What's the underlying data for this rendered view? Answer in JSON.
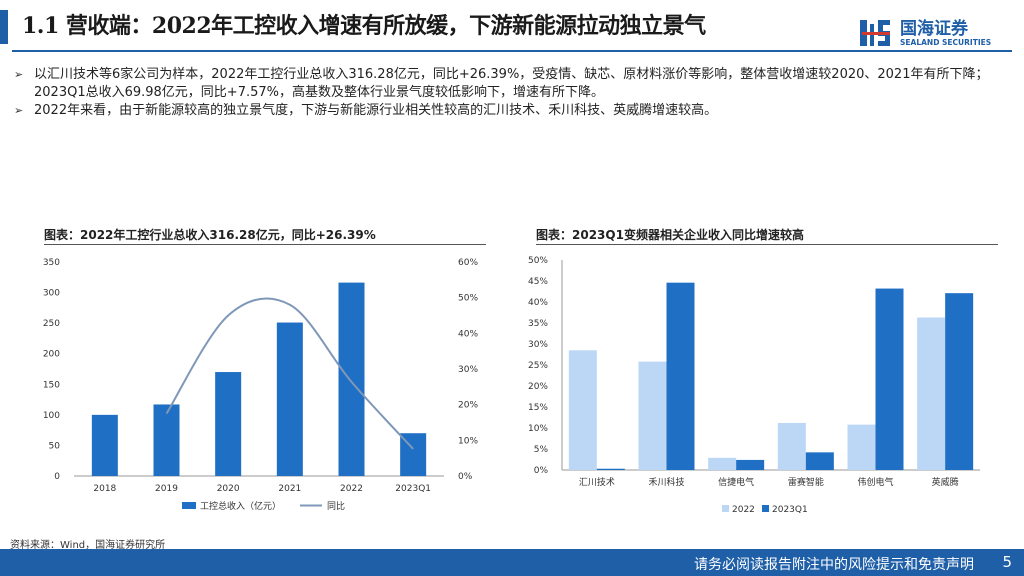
{
  "header": {
    "title": "1.1 营收端：2022年工控收入增速有所放缓，下游新能源拉动独立景气",
    "logo_cn": "国海证券",
    "logo_en": "SEALAND SECURITIES",
    "accent_color": "#1f5fa8"
  },
  "bullets": [
    "以汇川技术等6家公司为样本，2022年工控行业总收入316.28亿元，同比+26.39%，受疫情、缺芯、原材料涨价等影响，整体营收增速较2020、2021年有所下降；2023Q1总收入69.98亿元，同比+7.57%，高基数及整体行业景气度较低影响下，增速有所下降。",
    "2022年来看，由于新能源较高的独立景气度，下游与新能源行业相关性较高的汇川技术、禾川科技、英威腾增速较高。"
  ],
  "chart_data": [
    {
      "type": "bar",
      "title": "图表：2022年工控行业总收入316.28亿元，同比+26.39%",
      "categories": [
        "2018",
        "2019",
        "2020",
        "2021",
        "2022",
        "2023Q1"
      ],
      "series": [
        {
          "name": "工控总收入（亿元）",
          "type": "bar",
          "axis": "left",
          "color": "#1f6fc5",
          "values": [
            100,
            117,
            170,
            251,
            316.28,
            69.98
          ]
        },
        {
          "name": "同比",
          "type": "line",
          "axis": "right",
          "color": "#7f98b8",
          "values": [
            null,
            17.5,
            45,
            48,
            26.39,
            7.57
          ]
        }
      ],
      "ylim": [
        0,
        350
      ],
      "yticks": [
        "0",
        "50",
        "100",
        "150",
        "200",
        "250",
        "300",
        "350"
      ],
      "y2lim": [
        0,
        60
      ],
      "y2ticks": [
        "0%",
        "10%",
        "20%",
        "30%",
        "40%",
        "50%",
        "60%"
      ],
      "legend": "bottom"
    },
    {
      "type": "bar",
      "title": "图表：2023Q1变频器相关企业收入同比增速较高",
      "categories": [
        "汇川技术",
        "禾川科技",
        "信捷电气",
        "雷赛智能",
        "伟创电气",
        "英威腾"
      ],
      "series": [
        {
          "name": "2022",
          "color": "#bcd7f5",
          "values": [
            28.5,
            25.8,
            2.9,
            11.2,
            10.8,
            36.3
          ]
        },
        {
          "name": "2023Q1",
          "color": "#1f6fc5",
          "values": [
            0.3,
            44.6,
            2.4,
            4.2,
            43.2,
            42.1
          ]
        }
      ],
      "ylim": [
        0,
        50
      ],
      "yticks": [
        "0%",
        "5%",
        "10%",
        "15%",
        "20%",
        "25%",
        "30%",
        "35%",
        "40%",
        "45%",
        "50%"
      ],
      "legend": "bottom"
    }
  ],
  "source": "资料来源：Wind，国海证券研究所",
  "footer": {
    "text": "请务必阅读报告附注中的风险提示和免责声明",
    "page": "5"
  }
}
